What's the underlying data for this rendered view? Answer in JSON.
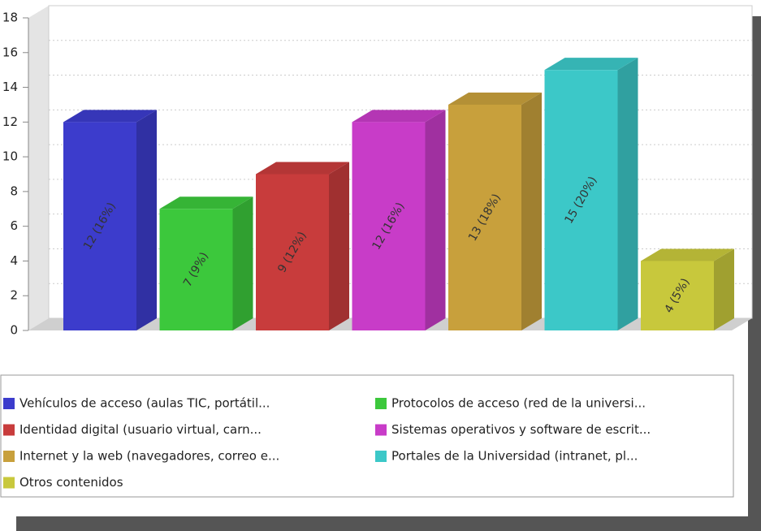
{
  "chart_data": {
    "type": "bar3d",
    "categories": [
      "Vehículos de acceso (aulas TIC, portátil...",
      "Protocolos de acceso (red de la universi...",
      "Identidad digital (usuario virtual, carn...",
      "Sistemas operativos y software de escrit...",
      "Internet y la web (navegadores, correo e...",
      "Portales de la Universidad (intranet, pl...",
      "Otros contenidos"
    ],
    "values": [
      12,
      7,
      9,
      12,
      13,
      15,
      4
    ],
    "value_labels": [
      "12 (16%)",
      "7 (9%)",
      "9 (12%)",
      "12 (16%)",
      "13 (18%)",
      "15 (20%)",
      "4 (5%)"
    ],
    "colors": [
      "#3c3ccc",
      "#3cc83c",
      "#c83c3c",
      "#c83cc8",
      "#c8a03c",
      "#3cc8c8",
      "#c8c83c"
    ],
    "ylim": [
      0,
      18
    ],
    "yticks": [
      0,
      2,
      4,
      6,
      8,
      10,
      12,
      14,
      16,
      18
    ],
    "grid": true
  }
}
